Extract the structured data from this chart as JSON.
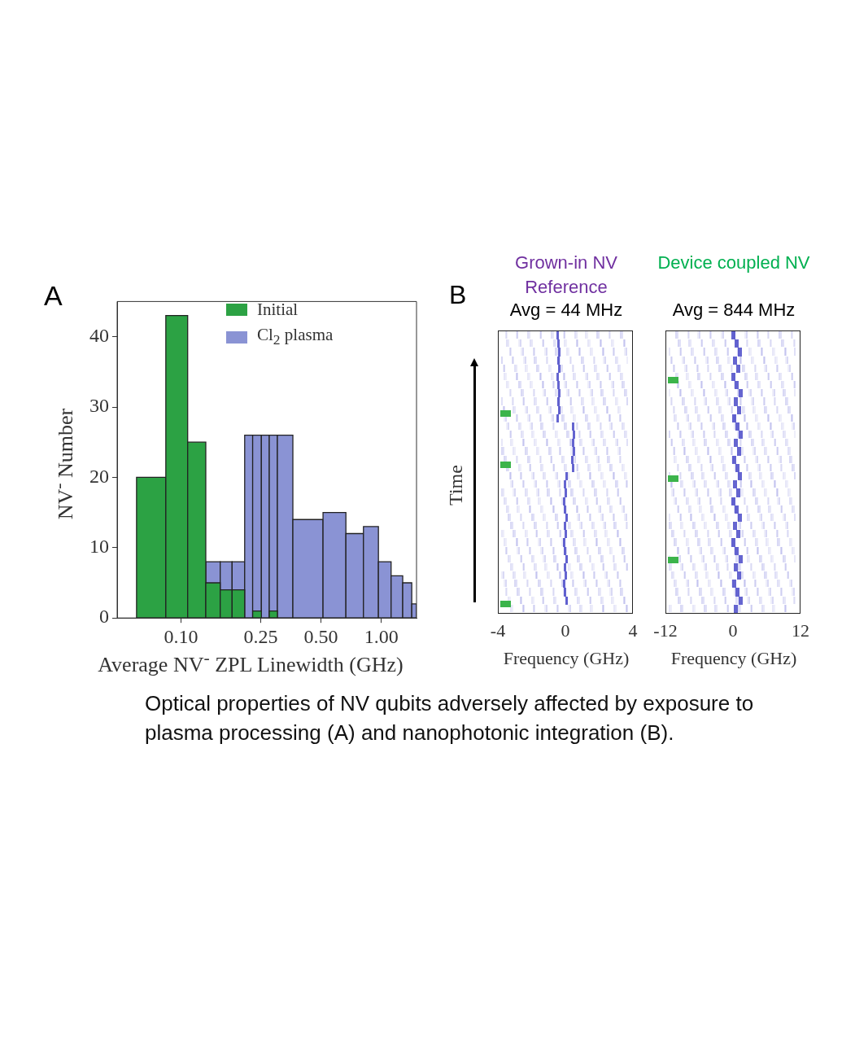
{
  "chart_data": [
    {
      "type": "histogram",
      "xlabel": "Average NV$^{-}$ ZPL Linewidth (GHz)",
      "ylabel": "NV$^{-}$ Number",
      "log": "x",
      "grid": false,
      "legend": "top",
      "xlim": [
        0.048,
        1.5
      ],
      "xticks": [
        {
          "value": 0.1,
          "label": "0.10"
        },
        {
          "value": 0.25,
          "label": "0.25"
        },
        {
          "value": 0.5,
          "label": "0.50"
        },
        {
          "value": 1,
          "label": "1.00"
        }
      ],
      "ylim": [
        0,
        45
      ],
      "yticks": [
        0,
        10,
        20,
        30,
        40
      ],
      "bins": [
        0.06,
        0.084,
        0.108,
        0.133,
        0.157,
        0.18,
        0.208,
        0.228,
        0.252,
        0.276,
        0.303,
        0.362,
        0.512,
        0.666,
        0.815,
        0.968,
        1.12,
        1.28,
        1.42,
        1.5
      ],
      "annotations": [
        "A",
        "Optical properties of NV qubits adversely affected by exposure to plasma processing (A) and nanophotonic integration (B)."
      ],
      "series": [
        {
          "name": "Initial",
          "color": "#2ca244",
          "values": [
            20,
            43,
            25,
            5,
            4,
            4,
            null,
            1,
            null,
            1,
            null,
            null,
            null,
            null,
            null,
            null,
            null,
            null,
            null
          ]
        },
        {
          "name": "Cl$_{2}$ plasma",
          "color": "#8a93d4",
          "values": [
            null,
            null,
            null,
            8,
            8,
            8,
            26,
            26,
            26,
            26,
            26,
            14,
            15,
            12,
            13,
            8,
            6,
            5,
            2
          ]
        }
      ]
    },
    {
      "type": "other",
      "title": "Grown-in NV Reference",
      "subtitle": "Avg = 44 MHz",
      "xlabel": "Frequency (GHz)",
      "ylabel": "Time",
      "annotations": [
        "B",
        "-4",
        "0",
        "4"
      ]
    },
    {
      "type": "other",
      "title": "Device coupled NV",
      "subtitle": "Avg = 844 MHz",
      "xlabel": "Frequency (GHz)",
      "annotations": [
        "-12",
        "0",
        "12"
      ]
    }
  ]
}
